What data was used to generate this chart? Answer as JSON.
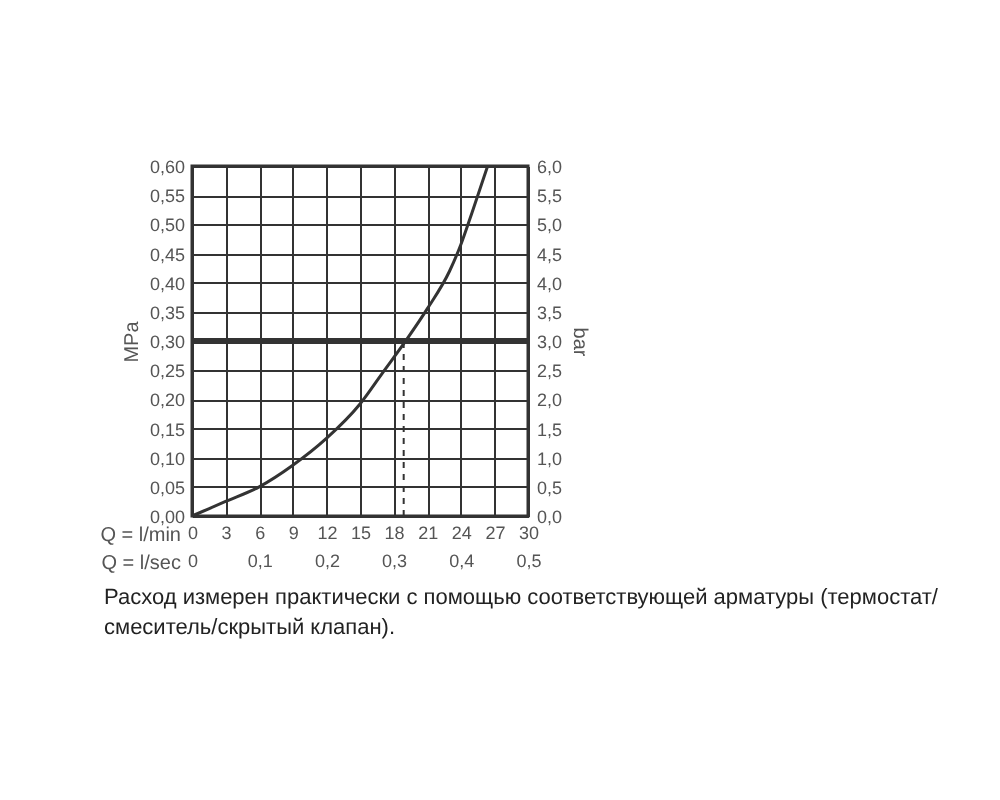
{
  "chart_data": {
    "type": "line",
    "xlabel": "Q = l/min",
    "x2label": "Q = l/sec",
    "ylabel": "MPa",
    "y2label": "bar",
    "annotations": [
      "Расход измерен практически с помощью соответствующей арматуры (термостат/смеситель/скрытый клапан)."
    ],
    "xlim": [
      0,
      30
    ],
    "xticks": [
      0,
      3,
      6,
      9,
      12,
      15,
      18,
      21,
      24,
      27,
      30
    ],
    "x2lim": [
      0,
      0.5
    ],
    "x2ticks": [
      0,
      {
        "value": 0.1,
        "label": "0,1"
      },
      {
        "value": 0.2,
        "label": "0,2"
      },
      {
        "value": 0.3,
        "label": "0,3"
      },
      {
        "value": 0.4,
        "label": "0,4"
      },
      {
        "value": 0.5,
        "label": "0,5"
      }
    ],
    "ylim": [
      0,
      0.6
    ],
    "yticks": [
      {
        "value": 0,
        "label": "0,00"
      },
      {
        "value": 0.05,
        "label": "0,05"
      },
      {
        "value": 0.1,
        "label": "0,10"
      },
      {
        "value": 0.15,
        "label": "0,15"
      },
      {
        "value": 0.2,
        "label": "0,20"
      },
      {
        "value": 0.25,
        "label": "0,25"
      },
      {
        "value": 0.3,
        "label": "0,30"
      },
      {
        "value": 0.35,
        "label": "0,35"
      },
      {
        "value": 0.4,
        "label": "0,40"
      },
      {
        "value": 0.45,
        "label": "0,45"
      },
      {
        "value": 0.5,
        "label": "0,50"
      },
      {
        "value": 0.55,
        "label": "0,55"
      },
      {
        "value": 0.6,
        "label": "0,60"
      }
    ],
    "y2lim": [
      0,
      6
    ],
    "y2ticks": [
      {
        "value": 0,
        "label": "0,0"
      },
      {
        "value": 0.5,
        "label": "0,5"
      },
      {
        "value": 1,
        "label": "1,0"
      },
      {
        "value": 1.5,
        "label": "1,5"
      },
      {
        "value": 2,
        "label": "2,0"
      },
      {
        "value": 2.5,
        "label": "2,5"
      },
      {
        "value": 3,
        "label": "3,0"
      },
      {
        "value": 3.5,
        "label": "3,5"
      },
      {
        "value": 4,
        "label": "4,0"
      },
      {
        "value": 4.5,
        "label": "4,5"
      },
      {
        "value": 5,
        "label": "5,0"
      },
      {
        "value": 5.5,
        "label": "5,5"
      },
      {
        "value": 6,
        "label": "6,0"
      }
    ],
    "grid": true,
    "series": [
      {
        "color": "#333333",
        "x": [
          0,
          3,
          6,
          9,
          12,
          15,
          17,
          19,
          21,
          23,
          24,
          25,
          26.4
        ],
        "values": [
          0,
          0.025,
          0.05,
          0.087,
          0.133,
          0.192,
          0.245,
          0.298,
          0.355,
          0.42,
          0.465,
          0.52,
          0.6
        ]
      }
    ],
    "ref_lines": [
      {
        "axis": "y",
        "value": 0.3,
        "color": "#333333"
      },
      {
        "axis": "x",
        "value": 18.9,
        "line_style": "dashed",
        "color": "#333333"
      }
    ]
  }
}
